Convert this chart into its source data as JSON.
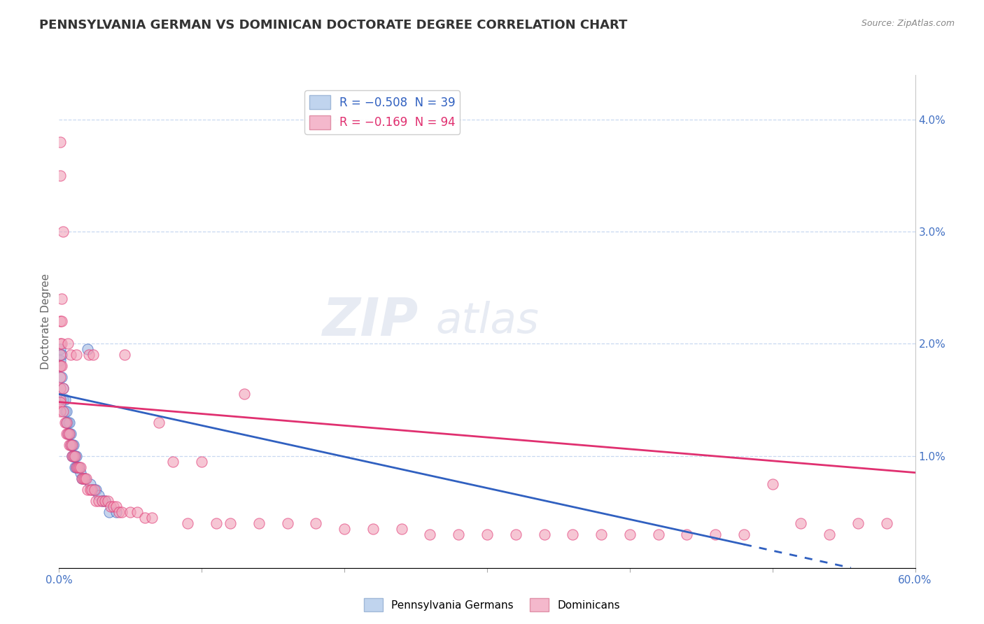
{
  "title": "PENNSYLVANIA GERMAN VS DOMINICAN DOCTORATE DEGREE CORRELATION CHART",
  "source": "Source: ZipAtlas.com",
  "ylabel": "Doctorate Degree",
  "x_lim": [
    0.0,
    0.6
  ],
  "y_lim": [
    0.0,
    0.044
  ],
  "blue_color": "#a0b8e0",
  "pink_color": "#f0a0b8",
  "blue_line_color": "#3060c0",
  "pink_line_color": "#e03070",
  "background_color": "#ffffff",
  "grid_color": "#c8d8f0",
  "blue_line_y_start": 0.0155,
  "blue_line_y_end": 0.0,
  "blue_line_x_end": 0.555,
  "pink_line_y_start": 0.0148,
  "pink_line_y_end": 0.0085,
  "blue_scatter": [
    [
      0.001,
      0.0195
    ],
    [
      0.001,
      0.0185
    ],
    [
      0.001,
      0.018
    ],
    [
      0.002,
      0.019
    ],
    [
      0.002,
      0.017
    ],
    [
      0.003,
      0.016
    ],
    [
      0.003,
      0.015
    ],
    [
      0.004,
      0.015
    ],
    [
      0.004,
      0.014
    ],
    [
      0.005,
      0.014
    ],
    [
      0.005,
      0.013
    ],
    [
      0.006,
      0.013
    ],
    [
      0.006,
      0.012
    ],
    [
      0.007,
      0.013
    ],
    [
      0.007,
      0.012
    ],
    [
      0.008,
      0.012
    ],
    [
      0.008,
      0.011
    ],
    [
      0.009,
      0.011
    ],
    [
      0.009,
      0.01
    ],
    [
      0.01,
      0.011
    ],
    [
      0.01,
      0.01
    ],
    [
      0.011,
      0.01
    ],
    [
      0.011,
      0.009
    ],
    [
      0.012,
      0.01
    ],
    [
      0.012,
      0.009
    ],
    [
      0.013,
      0.009
    ],
    [
      0.014,
      0.009
    ],
    [
      0.015,
      0.0085
    ],
    [
      0.016,
      0.008
    ],
    [
      0.018,
      0.008
    ],
    [
      0.02,
      0.0195
    ],
    [
      0.022,
      0.0075
    ],
    [
      0.024,
      0.007
    ],
    [
      0.026,
      0.007
    ],
    [
      0.028,
      0.0065
    ],
    [
      0.03,
      0.006
    ],
    [
      0.032,
      0.006
    ],
    [
      0.035,
      0.005
    ],
    [
      0.04,
      0.005
    ]
  ],
  "pink_scatter": [
    [
      0.001,
      0.038
    ],
    [
      0.001,
      0.035
    ],
    [
      0.001,
      0.022
    ],
    [
      0.001,
      0.02
    ],
    [
      0.001,
      0.019
    ],
    [
      0.001,
      0.018
    ],
    [
      0.001,
      0.018
    ],
    [
      0.001,
      0.017
    ],
    [
      0.001,
      0.016
    ],
    [
      0.001,
      0.015
    ],
    [
      0.001,
      0.0148
    ],
    [
      0.001,
      0.014
    ],
    [
      0.002,
      0.024
    ],
    [
      0.002,
      0.022
    ],
    [
      0.002,
      0.02
    ],
    [
      0.002,
      0.018
    ],
    [
      0.003,
      0.03
    ],
    [
      0.003,
      0.016
    ],
    [
      0.003,
      0.014
    ],
    [
      0.004,
      0.013
    ],
    [
      0.005,
      0.013
    ],
    [
      0.005,
      0.012
    ],
    [
      0.006,
      0.012
    ],
    [
      0.006,
      0.02
    ],
    [
      0.007,
      0.012
    ],
    [
      0.007,
      0.011
    ],
    [
      0.008,
      0.011
    ],
    [
      0.008,
      0.019
    ],
    [
      0.009,
      0.011
    ],
    [
      0.009,
      0.01
    ],
    [
      0.01,
      0.01
    ],
    [
      0.011,
      0.01
    ],
    [
      0.012,
      0.019
    ],
    [
      0.012,
      0.009
    ],
    [
      0.013,
      0.009
    ],
    [
      0.014,
      0.009
    ],
    [
      0.015,
      0.009
    ],
    [
      0.016,
      0.008
    ],
    [
      0.017,
      0.008
    ],
    [
      0.018,
      0.008
    ],
    [
      0.019,
      0.008
    ],
    [
      0.02,
      0.007
    ],
    [
      0.021,
      0.019
    ],
    [
      0.022,
      0.007
    ],
    [
      0.023,
      0.007
    ],
    [
      0.024,
      0.019
    ],
    [
      0.025,
      0.007
    ],
    [
      0.026,
      0.006
    ],
    [
      0.028,
      0.006
    ],
    [
      0.03,
      0.006
    ],
    [
      0.032,
      0.006
    ],
    [
      0.034,
      0.006
    ],
    [
      0.036,
      0.0055
    ],
    [
      0.038,
      0.0055
    ],
    [
      0.04,
      0.0055
    ],
    [
      0.042,
      0.005
    ],
    [
      0.044,
      0.005
    ],
    [
      0.046,
      0.019
    ],
    [
      0.05,
      0.005
    ],
    [
      0.055,
      0.005
    ],
    [
      0.06,
      0.0045
    ],
    [
      0.065,
      0.0045
    ],
    [
      0.07,
      0.013
    ],
    [
      0.08,
      0.0095
    ],
    [
      0.09,
      0.004
    ],
    [
      0.1,
      0.0095
    ],
    [
      0.11,
      0.004
    ],
    [
      0.12,
      0.004
    ],
    [
      0.13,
      0.0155
    ],
    [
      0.14,
      0.004
    ],
    [
      0.16,
      0.004
    ],
    [
      0.18,
      0.004
    ],
    [
      0.2,
      0.0035
    ],
    [
      0.22,
      0.0035
    ],
    [
      0.24,
      0.0035
    ],
    [
      0.26,
      0.003
    ],
    [
      0.28,
      0.003
    ],
    [
      0.3,
      0.003
    ],
    [
      0.32,
      0.003
    ],
    [
      0.34,
      0.003
    ],
    [
      0.36,
      0.003
    ],
    [
      0.38,
      0.003
    ],
    [
      0.4,
      0.003
    ],
    [
      0.42,
      0.003
    ],
    [
      0.44,
      0.003
    ],
    [
      0.46,
      0.003
    ],
    [
      0.48,
      0.003
    ],
    [
      0.5,
      0.0075
    ],
    [
      0.52,
      0.004
    ],
    [
      0.54,
      0.003
    ],
    [
      0.56,
      0.004
    ],
    [
      0.58,
      0.004
    ]
  ]
}
